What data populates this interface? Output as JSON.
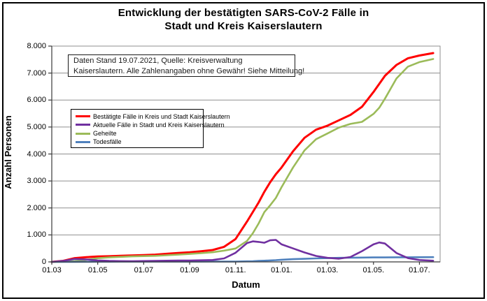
{
  "header": {
    "title_lines": [
      "Entwicklung der bestätigten SARS-CoV-2 Fälle in",
      "Stadt und Kreis Kaiserslautern"
    ]
  },
  "annotation": {
    "line1": "Daten Stand 19.07.2021, Quelle: Kreisverwaltung",
    "line2": "Kaiserslautern. Alle Zahlenangaben ohne Gewähr! Siehe Mitteilung!"
  },
  "axes": {
    "y_title": "Anzahl Personen",
    "x_title": "Datum",
    "y_tick_labels": [
      "0",
      "1.000",
      "2.000",
      "3.000",
      "4.000",
      "5.000",
      "6.000",
      "7.000",
      "8.000"
    ]
  },
  "colors": {
    "grid": "#8f8f8f",
    "axis": "#3a3a3a",
    "background": "#ffffff",
    "red": "#ff0000",
    "purple": "#7030a0",
    "green": "#9bbb59",
    "blue": "#4f81bd"
  },
  "chart_data": {
    "type": "line",
    "title": "Entwicklung der bestätigten SARS-CoV-2 Fälle in Stadt und Kreis Kaiserslautern",
    "xlabel": "Datum",
    "ylabel": "Anzahl Personen",
    "ylim": [
      0,
      8000
    ],
    "xlim": [
      0,
      16.9
    ],
    "x_unit": "months since 01.03.2020",
    "grid": "horizontal-only",
    "legend_position": "inside-upper-left",
    "y_ticks": [
      0,
      1000,
      2000,
      3000,
      4000,
      5000,
      6000,
      7000,
      8000
    ],
    "x_tick_positions": [
      0,
      2,
      4,
      6,
      8,
      10,
      12,
      14,
      16
    ],
    "x_tick_labels": [
      "01.03",
      "01.05",
      "01.07",
      "01.09",
      "01.11.",
      "01.01.",
      "01.03.",
      "01.05.",
      "01.07."
    ],
    "x_dates": [
      "01.03.20",
      "15.03.20",
      "01.04.20",
      "15.04.20",
      "01.05.20",
      "15.05.20",
      "01.06.20",
      "15.06.20",
      "01.07.20",
      "15.07.20",
      "01.08.20",
      "15.08.20",
      "01.09.20",
      "15.09.20",
      "01.10.20",
      "15.10.20",
      "01.11.20",
      "15.11.20",
      "23.11.20",
      "01.12.20",
      "08.12.20",
      "15.12.20",
      "23.12.20",
      "01.01.21",
      "15.01.21",
      "01.02.21",
      "15.02.21",
      "01.03.21",
      "15.03.21",
      "01.04.21",
      "15.04.21",
      "01.05.21",
      "08.05.21",
      "15.05.21",
      "01.06.21",
      "15.06.21",
      "01.07.21",
      "19.07.21"
    ],
    "x": [
      0,
      0.5,
      1,
      1.5,
      2,
      2.5,
      3,
      3.5,
      4,
      4.5,
      5,
      5.5,
      6,
      6.5,
      7,
      7.5,
      8,
      8.5,
      8.75,
      9,
      9.25,
      9.5,
      9.75,
      10,
      10.5,
      11,
      11.5,
      12,
      12.5,
      13,
      13.5,
      14,
      14.25,
      14.5,
      15,
      15.5,
      16,
      16.6
    ],
    "series": [
      {
        "name": "Bestätigte Fälle in Kreis und Stadt Kaiserslautern",
        "color": "#ff0000",
        "width": 3,
        "values": [
          0,
          40,
          140,
          175,
          200,
          210,
          225,
          240,
          255,
          270,
          300,
          330,
          355,
          395,
          440,
          560,
          850,
          1500,
          1850,
          2200,
          2600,
          2950,
          3250,
          3500,
          4100,
          4600,
          4900,
          5050,
          5250,
          5450,
          5750,
          6300,
          6600,
          6900,
          7300,
          7550,
          7650,
          7740
        ]
      },
      {
        "name": "Aktuelle Fälle in Stadt und Kreis Kaiserslautern",
        "color": "#7030a0",
        "width": 2.6,
        "values": [
          0,
          35,
          110,
          90,
          55,
          35,
          28,
          25,
          30,
          35,
          45,
          50,
          50,
          60,
          70,
          130,
          340,
          700,
          760,
          740,
          710,
          800,
          815,
          650,
          500,
          350,
          220,
          150,
          120,
          180,
          400,
          650,
          720,
          680,
          330,
          140,
          70,
          45
        ]
      },
      {
        "name": "Geheilte",
        "color": "#9bbb59",
        "width": 2.6,
        "values": [
          0,
          5,
          28,
          80,
          137,
          166,
          187,
          205,
          215,
          225,
          245,
          269,
          294,
          324,
          358,
          418,
          496,
          780,
          1065,
          1425,
          1845,
          2095,
          2370,
          2770,
          3500,
          4135,
          4550,
          4760,
          4980,
          5115,
          5190,
          5485,
          5715,
          6054,
          6800,
          7238,
          7407,
          7520
        ]
      },
      {
        "name": "Todesfälle",
        "color": "#4f81bd",
        "width": 2.6,
        "values": [
          0,
          0,
          2,
          5,
          8,
          9,
          10,
          10,
          10,
          10,
          10,
          11,
          11,
          11,
          12,
          12,
          14,
          20,
          27,
          35,
          45,
          55,
          65,
          80,
          100,
          115,
          130,
          140,
          150,
          155,
          160,
          165,
          165,
          166,
          170,
          172,
          173,
          175
        ]
      }
    ],
    "draw_order": [
      0,
      2,
      3,
      1
    ]
  }
}
